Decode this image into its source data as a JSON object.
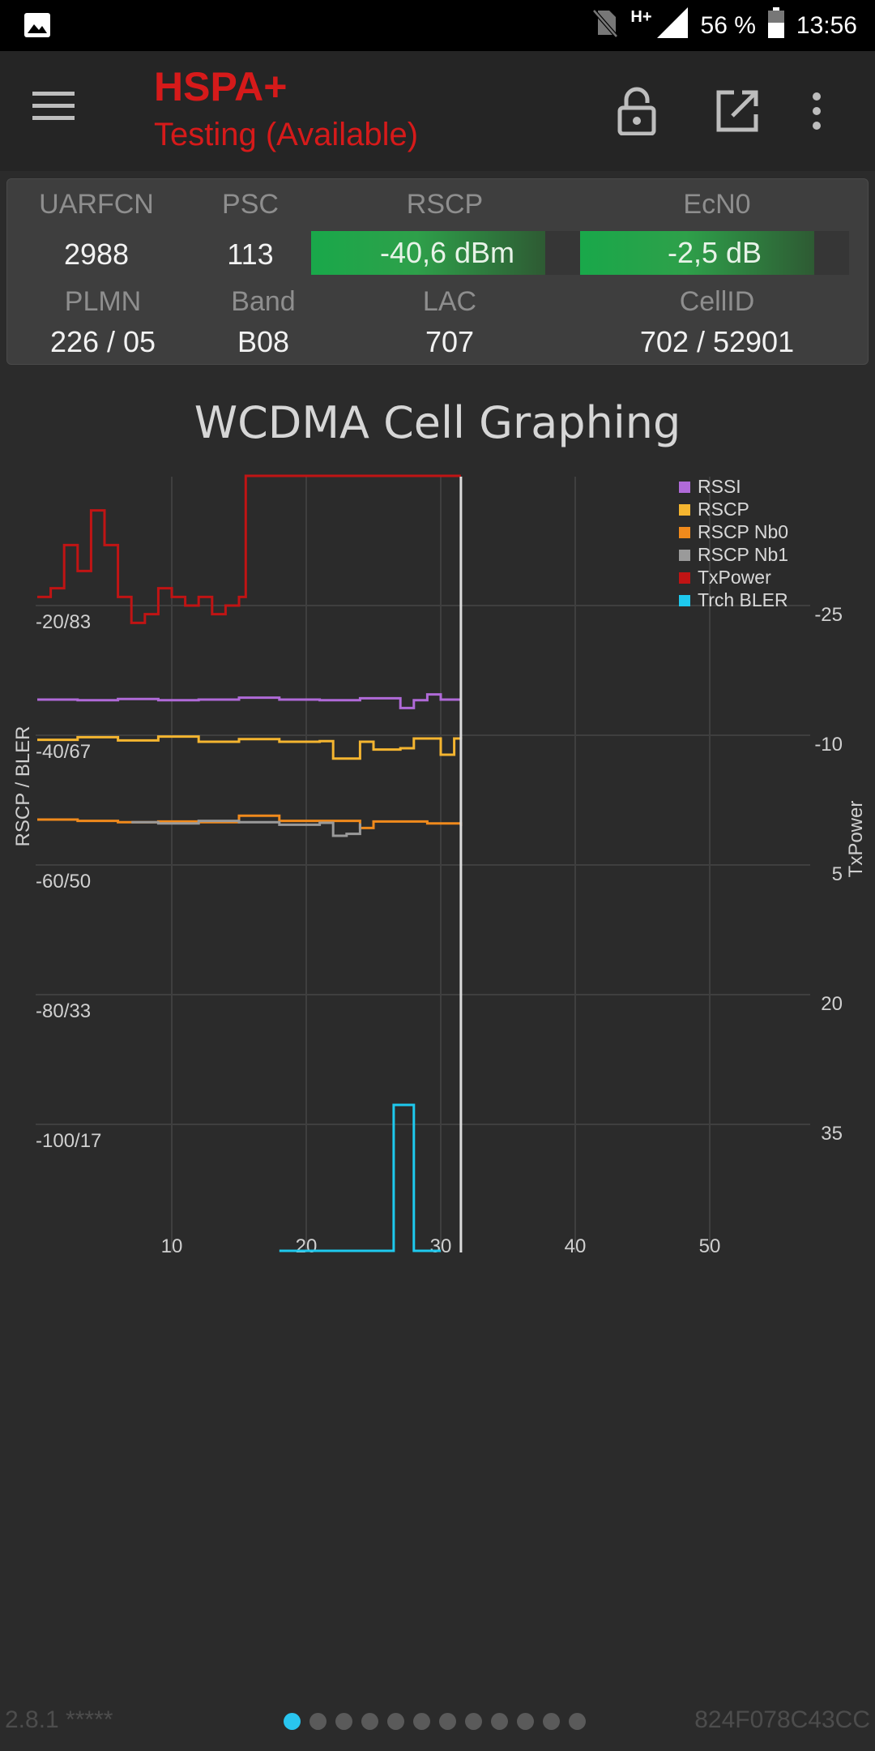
{
  "status_bar": {
    "network_type": "H+",
    "battery": "56 %",
    "time": "13:56",
    "icons": [
      "image-icon",
      "no-sim-icon",
      "signal-icon",
      "battery-icon"
    ]
  },
  "app_bar": {
    "technology": "HSPA+",
    "status": "Testing (Available)",
    "icons": [
      "menu-icon",
      "lock-open-icon",
      "open-external-icon",
      "more-vert-icon"
    ]
  },
  "info_panel": {
    "uarfcn": {
      "label": "UARFCN",
      "value": "2988"
    },
    "psc": {
      "label": "PSC",
      "value": "113"
    },
    "rscp": {
      "label": "RSCP",
      "value": "-40,6 dBm",
      "level": 0.86
    },
    "ecn0": {
      "label": "EcN0",
      "value": "-2,5 dB",
      "level": 0.87
    },
    "plmn": {
      "label": "PLMN",
      "value": "226 / 05"
    },
    "band": {
      "label": "Band",
      "value": "B08"
    },
    "lac": {
      "label": "LAC",
      "value": "707"
    },
    "cellid": {
      "label": "CellID",
      "value": "702 / 52901"
    }
  },
  "chart_data": {
    "type": "line",
    "title": "WCDMA Cell Graphing",
    "ylabel": "RSCP / BLER",
    "y2label": "TxPower",
    "xlim": [
      0,
      60
    ],
    "ylim": [
      -120,
      0
    ],
    "y2lim": [
      -40,
      50
    ],
    "x_ticks": [
      "10",
      "20",
      "30",
      "40",
      "50"
    ],
    "y_ticks": [
      "-20/83",
      "-40/67",
      "-60/50",
      "-80/33",
      "-100/17"
    ],
    "y2_ticks": [
      "-25",
      "-10",
      "5",
      "20",
      "35"
    ],
    "grid": true,
    "legend_position": "top-right",
    "cursor_x": 31.5,
    "series": [
      {
        "name": "RSSI",
        "color": "#b06ad8",
        "axis": "left",
        "x": [
          0,
          3,
          6,
          9,
          12,
          15,
          18,
          21,
          24,
          27,
          28,
          29,
          30,
          31.5
        ],
        "y": [
          -34.5,
          -34.6,
          -34.4,
          -34.6,
          -34.5,
          -34.2,
          -34.5,
          -34.6,
          -34.3,
          -35.8,
          -34.6,
          -33.7,
          -34.5,
          -34.5
        ]
      },
      {
        "name": "RSCP",
        "color": "#f4b530",
        "axis": "left",
        "x": [
          0,
          3,
          6,
          9,
          12,
          15,
          18,
          21,
          22,
          24,
          25,
          27,
          28,
          30,
          31,
          31.5
        ],
        "y": [
          -40.7,
          -40.3,
          -40.8,
          -40.2,
          -41.0,
          -40.6,
          -41.0,
          -40.9,
          -43.6,
          -41.0,
          -42.2,
          -42.0,
          -40.5,
          -43.0,
          -40.5,
          -40.6
        ]
      },
      {
        "name": "RSCP Nb0",
        "color": "#f08a1c",
        "axis": "left",
        "x": [
          0,
          3,
          6,
          9,
          12,
          15,
          18,
          21,
          24,
          25,
          27,
          29,
          31.5
        ],
        "y": [
          -53.0,
          -53.2,
          -53.4,
          -53.3,
          -53.4,
          -52.4,
          -53.2,
          -53.2,
          -54.3,
          -53.3,
          -53.3,
          -53.6,
          -54.0
        ]
      },
      {
        "name": "RSCP Nb1",
        "color": "#9a9a9a",
        "axis": "left",
        "x": [
          7,
          9,
          12,
          15,
          18,
          21,
          22,
          23,
          24
        ],
        "y": [
          -53.4,
          -53.6,
          -53.2,
          -53.4,
          -53.8,
          -53.5,
          -55.5,
          -55.2,
          -53.6
        ]
      },
      {
        "name": "TxPower",
        "color": "#c01414",
        "axis": "right",
        "x": [
          0,
          1,
          2,
          3,
          4,
          5,
          6,
          7,
          8,
          9,
          10,
          11,
          12,
          13,
          14,
          15,
          15.5,
          31.5
        ],
        "y": [
          -26,
          -27,
          -32,
          -29,
          -36,
          -32,
          -26,
          -23,
          -24,
          -27,
          -26,
          -25,
          -26,
          -24,
          -25,
          -26,
          -40,
          -40
        ]
      },
      {
        "name": "Trch BLER",
        "color": "#1ec9ee",
        "axis": "left",
        "x": [
          18,
          20,
          26.5,
          26.5,
          28,
          28,
          30
        ],
        "y": [
          -119.5,
          -119.5,
          -119.5,
          -97,
          -97,
          -119.5,
          -119.5
        ]
      }
    ]
  },
  "footer": {
    "version": "2.8.1 *****",
    "device_id": "824F078C43CC",
    "page_count": 12,
    "current_page": 0
  }
}
